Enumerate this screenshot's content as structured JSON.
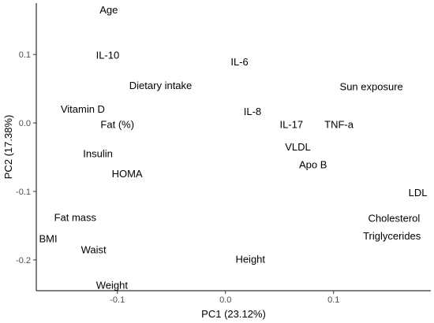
{
  "chart_data": {
    "type": "scatter",
    "title": "",
    "xlabel": "PC1 (23.12%)",
    "ylabel": "PC2 (17.38%)",
    "xlim": [
      -0.175,
      0.19
    ],
    "ylim": [
      -0.245,
      0.175
    ],
    "xticks": [
      -0.1,
      0.0,
      0.1
    ],
    "xtick_labels": [
      "-0.1",
      "0.0",
      "0.1"
    ],
    "yticks": [
      -0.2,
      -0.1,
      0.0,
      0.1
    ],
    "ytick_labels": [
      "-0.2",
      "-0.1",
      "0.0",
      "0.1"
    ],
    "grid": false,
    "legend": "none",
    "points": [
      {
        "label": "Age",
        "x": -0.108,
        "y": 0.165
      },
      {
        "label": "IL-10",
        "x": -0.109,
        "y": 0.099
      },
      {
        "label": "IL-6",
        "x": 0.013,
        "y": 0.089
      },
      {
        "label": "Dietary intake",
        "x": -0.06,
        "y": 0.055
      },
      {
        "label": "Sun exposure",
        "x": 0.135,
        "y": 0.053
      },
      {
        "label": "Vitamin D",
        "x": -0.132,
        "y": 0.02
      },
      {
        "label": "IL-8",
        "x": 0.025,
        "y": 0.017
      },
      {
        "label": "Fat (%)",
        "x": -0.1,
        "y": -0.002
      },
      {
        "label": "IL-17",
        "x": 0.061,
        "y": -0.002
      },
      {
        "label": "TNF-a",
        "x": 0.105,
        "y": -0.002
      },
      {
        "label": "VLDL",
        "x": 0.067,
        "y": -0.035
      },
      {
        "label": "Insulin",
        "x": -0.118,
        "y": -0.045
      },
      {
        "label": "Apo B",
        "x": 0.081,
        "y": -0.061
      },
      {
        "label": "HOMA",
        "x": -0.091,
        "y": -0.074
      },
      {
        "label": "LDL",
        "x": 0.178,
        "y": -0.102
      },
      {
        "label": "Fat mass",
        "x": -0.139,
        "y": -0.138
      },
      {
        "label": "Cholesterol",
        "x": 0.156,
        "y": -0.139
      },
      {
        "label": "Triglycerides",
        "x": 0.154,
        "y": -0.165
      },
      {
        "label": "BMI",
        "x": -0.164,
        "y": -0.169
      },
      {
        "label": "Waist",
        "x": -0.122,
        "y": -0.185
      },
      {
        "label": "Height",
        "x": 0.023,
        "y": -0.199
      },
      {
        "label": "Weight",
        "x": -0.105,
        "y": -0.237
      }
    ]
  }
}
